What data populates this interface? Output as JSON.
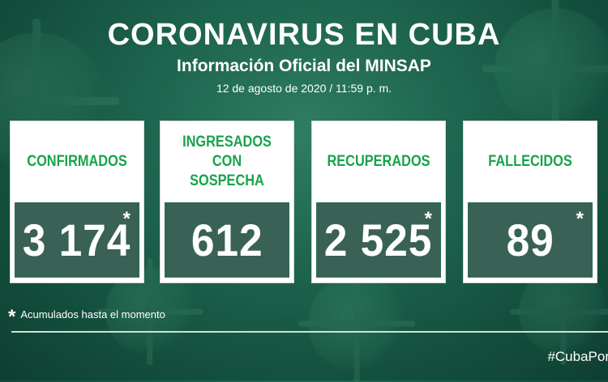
{
  "header": {
    "title": "CORONAVIRUS EN CUBA",
    "subtitle": "Información Oficial del MINSAP",
    "date": "12 de agosto de 2020 / 11:59 p. m."
  },
  "cards": [
    {
      "label": "CONFIRMADOS",
      "value": "3 174",
      "asterisk": "*"
    },
    {
      "label": "INGRESADOS CON SOSPECHA",
      "value": "612",
      "asterisk": ""
    },
    {
      "label": "RECUPERADOS",
      "value": "2 525",
      "asterisk": "*"
    },
    {
      "label": "FALLECIDOS",
      "value": "89",
      "asterisk": "*"
    }
  ],
  "footnote": {
    "asterisk": "*",
    "text": "Acumulados hasta el momento"
  },
  "hashtag": "#CubaPor",
  "colors": {
    "accent_green": "#17a34a",
    "background": "#1f6650"
  }
}
